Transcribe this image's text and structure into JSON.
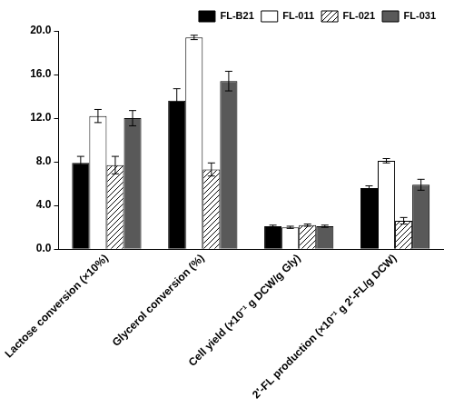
{
  "chart_data": {
    "type": "bar",
    "categories": [
      "Lactose conversion (×10%)",
      "Glycerol conversion (%)",
      "Cell yield (×10⁻¹ g DCW/g Gly)",
      "2'-FL production (×10⁻¹ g 2'-FL/g DCW)"
    ],
    "series": [
      {
        "name": "FL-B21",
        "color": "#000000",
        "values": [
          7.9,
          13.6,
          2.1,
          5.6
        ],
        "errors": [
          0.6,
          1.1,
          0.1,
          0.2
        ]
      },
      {
        "name": "FL-011",
        "color": "#ffffff",
        "values": [
          12.2,
          19.4,
          2.0,
          8.1
        ],
        "errors": [
          0.6,
          0.2,
          0.1,
          0.2
        ]
      },
      {
        "name": "FL-021",
        "color": "#ffffff",
        "marker": "/",
        "values": [
          7.7,
          7.3,
          2.2,
          2.6
        ],
        "errors": [
          0.8,
          0.6,
          0.1,
          0.3
        ]
      },
      {
        "name": "FL-031",
        "color": "#595959",
        "values": [
          12.0,
          15.4,
          2.1,
          5.9
        ],
        "errors": [
          0.7,
          0.9,
          0.1,
          0.5
        ]
      }
    ],
    "ylim": [
      0,
      20
    ],
    "yticks": [
      {
        "value": 0,
        "label": "0.0"
      },
      {
        "value": 4,
        "label": "4.0"
      },
      {
        "value": 8,
        "label": "8.0"
      },
      {
        "value": 12,
        "label": "12.0"
      },
      {
        "value": 16,
        "label": "16.0"
      },
      {
        "value": 20,
        "label": "20.0"
      }
    ],
    "grid": false,
    "legend": "upper right"
  }
}
